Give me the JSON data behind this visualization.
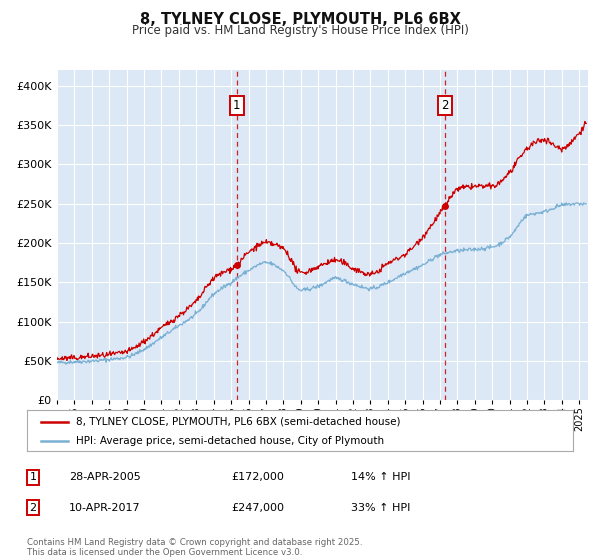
{
  "title": "8, TYLNEY CLOSE, PLYMOUTH, PL6 6BX",
  "subtitle": "Price paid vs. HM Land Registry's House Price Index (HPI)",
  "legend_line1": "8, TYLNEY CLOSE, PLYMOUTH, PL6 6BX (semi-detached house)",
  "legend_line2": "HPI: Average price, semi-detached house, City of Plymouth",
  "annotation1_label": "1",
  "annotation1_date": "28-APR-2005",
  "annotation1_price": "£172,000",
  "annotation1_hpi": "14% ↑ HPI",
  "annotation1_year": 2005.32,
  "annotation1_value": 172000,
  "annotation2_label": "2",
  "annotation2_date": "10-APR-2017",
  "annotation2_price": "£247,000",
  "annotation2_hpi": "33% ↑ HPI",
  "annotation2_year": 2017.28,
  "annotation2_value": 247000,
  "background_color": "#ffffff",
  "plot_bg_color": "#dce8f5",
  "line_color_red": "#cc0000",
  "line_color_blue": "#7ab0d4",
  "grid_color": "#ffffff",
  "footer": "Contains HM Land Registry data © Crown copyright and database right 2025.\nThis data is licensed under the Open Government Licence v3.0.",
  "xmin": 1995,
  "xmax": 2025.5,
  "ymin": 0,
  "ymax": 420000
}
